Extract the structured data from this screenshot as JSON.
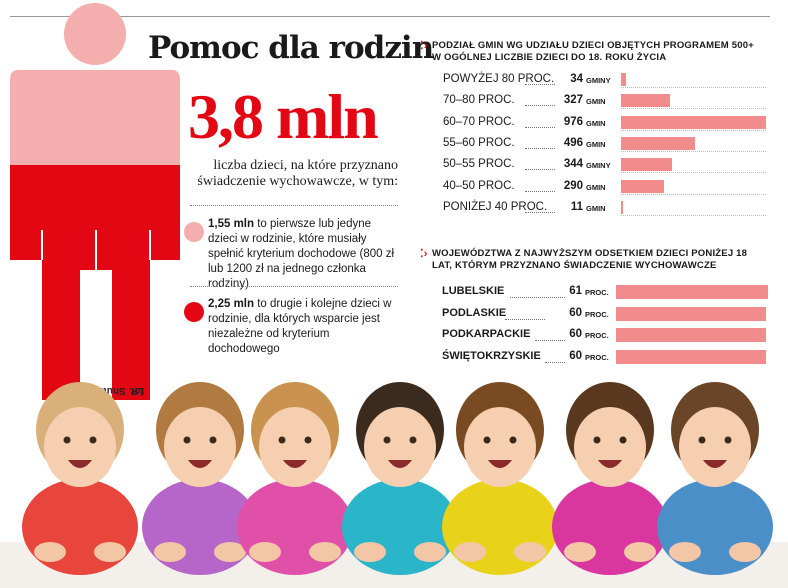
{
  "title": "Pomoc dla rodzin",
  "headline_value": "3,8 mln",
  "headline_desc": "liczba dzieci, na które przyznano świadczenie wychowawcze, w tym:",
  "photo_credit": "fot. Shutterstock",
  "photo_credit_sub": "LR",
  "bullets": [
    {
      "amount": "1,55 mln",
      "text": " to pierwsze lub jedyne dzieci w rodzinie, które musiały spełnić kryterium dochodowe (800 zł lub 1200 zł na jednego członka rodziny)",
      "color": "#f4aeae"
    },
    {
      "amount": "2,25 mln",
      "text": " to drugie i kolejne dzieci w rodzinie, dla których wsparcie jest niezależne od kryterium dochodowego",
      "color": "#e30613"
    }
  ],
  "colors": {
    "accent": "#e30613",
    "bar": "#f28c8c",
    "light": "#f4aeae"
  },
  "chart_data": [
    {
      "type": "bar",
      "orientation": "horizontal",
      "title": "PODZIAŁ GMIN WG UDZIAŁU DZIECI OBJĘTYCH PROGRAMEM 500+ W OGÓLNEJ LICZBIE DZIECI DO 18. ROKU ŻYCIA",
      "categories": [
        "POWYŻEJ 80 PROC.",
        "70–80 PROC.",
        "60–70 PROC.",
        "55–60 PROC.",
        "50–55 PROC.",
        "40–50 PROC.",
        "PONIŻEJ 40 PROC."
      ],
      "values": [
        34,
        327,
        976,
        496,
        344,
        290,
        11
      ],
      "value_labels": [
        "34",
        "327",
        "976",
        "496",
        "344",
        "290",
        "11"
      ],
      "units": [
        "GMINY",
        "GMIN",
        "GMIN",
        "GMIN",
        "GMINY",
        "GMIN",
        "GMIN"
      ],
      "xlim": [
        0,
        976
      ]
    },
    {
      "type": "bar",
      "orientation": "horizontal",
      "title": "WOJEWÓDZTWA Z NAJWYŻSZYM ODSETKIEM DZIECI PONIŻEJ 18 LAT, KTÓRYM PRZYZNANO ŚWIADCZENIE WYCHOWAWCZE",
      "categories": [
        "LUBELSKIE",
        "PODLASKIE",
        "PODKARPACKIE",
        "ŚWIĘTOKRZYSKIE"
      ],
      "values": [
        61,
        60,
        60,
        60
      ],
      "value_labels": [
        "61",
        "60",
        "60",
        "60"
      ],
      "unit": "PROC.",
      "xlim": [
        0,
        61
      ]
    }
  ]
}
